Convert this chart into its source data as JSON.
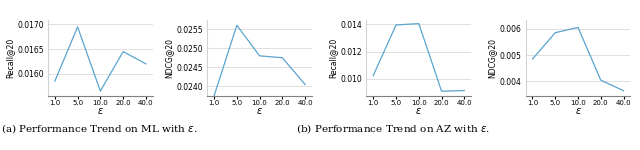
{
  "x": [
    1.0,
    5.0,
    10.0,
    20.0,
    40.0
  ],
  "ml_recall": [
    0.01585,
    0.01695,
    0.01565,
    0.01645,
    0.0162
  ],
  "ml_ndcg": [
    0.02375,
    0.0256,
    0.0248,
    0.02475,
    0.02405
  ],
  "az_recall": [
    0.01025,
    0.01395,
    0.01405,
    0.0091,
    0.00915
  ],
  "az_ndcg": [
    0.00485,
    0.00585,
    0.00605,
    0.00405,
    0.00365
  ],
  "line_color": "#5ba4cf",
  "caption_a": "(a) Performance Trend on ML with $\\epsilon$.",
  "caption_b": "(b) Performance Trend on AZ with $\\epsilon$.",
  "ylabel_recall": "Recall@20",
  "ylabel_ndcg": "NDCG@20",
  "xlabel": "$\\epsilon$",
  "xtick_labels": [
    "1.0",
    "5.0",
    "10.0",
    "20.0",
    "40.0"
  ],
  "xticks": [
    0,
    1,
    2,
    3,
    4
  ],
  "ml_recall_ylim": [
    0.01555,
    0.0171
  ],
  "ml_ndcg_ylim": [
    0.02375,
    0.02575
  ],
  "az_recall_ylim": [
    0.00875,
    0.01435
  ],
  "az_ndcg_ylim": [
    0.00345,
    0.00635
  ]
}
